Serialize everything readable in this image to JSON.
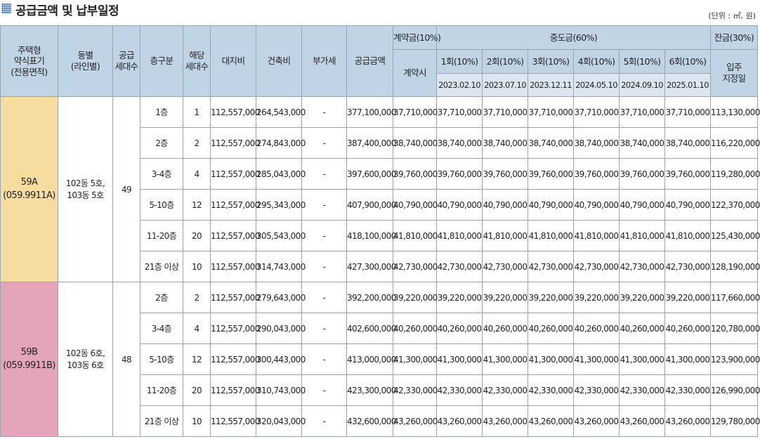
{
  "title": "공급금액 및 납부일정",
  "unit_note": "(단위 : ㎡, 원)",
  "colors": {
    "header_bg": "#c1d4e6",
    "type_59A_bg": "#f6dc9f",
    "type_59B_bg": "#e5a5b8",
    "title_icon": "#4a7fb0"
  },
  "icons": {
    "title": "grid-square-icon"
  },
  "headers": {
    "type_line1": "주택형",
    "type_line2": "약식표기",
    "type_line3": "(전용면적)",
    "building_line1": "동별",
    "building_line2": "(라인별)",
    "supply_units_line1": "공급",
    "supply_units_line2": "세대수",
    "floor": "층구분",
    "units_line1": "해당",
    "units_line2": "세대수",
    "land": "대지비",
    "construction": "건축비",
    "vat": "부가세",
    "supply_price": "공급금액",
    "deposit": "계약금(10%)",
    "deposit_sub": "계약시",
    "middle": "중도금(60%)",
    "installments": [
      {
        "label": "1회(10%)",
        "date": "2023.02.10"
      },
      {
        "label": "2회(10%)",
        "date": "2023.07.10"
      },
      {
        "label": "3회(10%)",
        "date": "2023.12.11"
      },
      {
        "label": "4회(10%)",
        "date": "2024.05.10"
      },
      {
        "label": "5회(10%)",
        "date": "2024.09.10"
      },
      {
        "label": "6회(10%)",
        "date": "2025.01.10"
      }
    ],
    "balance": "잔금(30%)",
    "balance_sub_line1": "입주",
    "balance_sub_line2": "지정일"
  },
  "groups": [
    {
      "type_line1": "59A",
      "type_line2": "(059.9911A)",
      "building_line1": "102동 5호,",
      "building_line2": "103동 5호",
      "supply_units": "49",
      "rows": [
        {
          "floor": "1층",
          "units": "1",
          "land": "112,557,000",
          "construction": "264,543,000",
          "vat": "-",
          "supply": "377,100,000",
          "deposit": "37,710,000",
          "middle": [
            "37,710,000",
            "37,710,000",
            "37,710,000",
            "37,710,000",
            "37,710,000",
            "37,710,000"
          ],
          "balance": "113,130,000"
        },
        {
          "floor": "2층",
          "units": "2",
          "land": "112,557,000",
          "construction": "274,843,000",
          "vat": "-",
          "supply": "387,400,000",
          "deposit": "38,740,000",
          "middle": [
            "38,740,000",
            "38,740,000",
            "38,740,000",
            "38,740,000",
            "38,740,000",
            "38,740,000"
          ],
          "balance": "116,220,000"
        },
        {
          "floor": "3-4층",
          "units": "4",
          "land": "112,557,000",
          "construction": "285,043,000",
          "vat": "-",
          "supply": "397,600,000",
          "deposit": "39,760,000",
          "middle": [
            "39,760,000",
            "39,760,000",
            "39,760,000",
            "39,760,000",
            "39,760,000",
            "39,760,000"
          ],
          "balance": "119,280,000"
        },
        {
          "floor": "5-10층",
          "units": "12",
          "land": "112,557,000",
          "construction": "295,343,000",
          "vat": "-",
          "supply": "407,900,000",
          "deposit": "40,790,000",
          "middle": [
            "40,790,000",
            "40,790,000",
            "40,790,000",
            "40,790,000",
            "40,790,000",
            "40,790,000"
          ],
          "balance": "122,370,000"
        },
        {
          "floor": "11-20층",
          "units": "20",
          "land": "112,557,000",
          "construction": "305,543,000",
          "vat": "-",
          "supply": "418,100,000",
          "deposit": "41,810,000",
          "middle": [
            "41,810,000",
            "41,810,000",
            "41,810,000",
            "41,810,000",
            "41,810,000",
            "41,810,000"
          ],
          "balance": "125,430,000"
        },
        {
          "floor": "21층 이상",
          "units": "10",
          "land": "112,557,000",
          "construction": "314,743,000",
          "vat": "-",
          "supply": "427,300,000",
          "deposit": "42,730,000",
          "middle": [
            "42,730,000",
            "42,730,000",
            "42,730,000",
            "42,730,000",
            "42,730,000",
            "42,730,000"
          ],
          "balance": "128,190,000"
        }
      ]
    },
    {
      "type_line1": "59B",
      "type_line2": "(059.9911B)",
      "building_line1": "102동 6호,",
      "building_line2": "103동 6호",
      "supply_units": "48",
      "rows": [
        {
          "floor": "2층",
          "units": "2",
          "land": "112,557,000",
          "construction": "279,643,000",
          "vat": "-",
          "supply": "392,200,000",
          "deposit": "39,220,000",
          "middle": [
            "39,220,000",
            "39,220,000",
            "39,220,000",
            "39,220,000",
            "39,220,000",
            "39,220,000"
          ],
          "balance": "117,660,000"
        },
        {
          "floor": "3-4층",
          "units": "4",
          "land": "112,557,000",
          "construction": "290,043,000",
          "vat": "-",
          "supply": "402,600,000",
          "deposit": "40,260,000",
          "middle": [
            "40,260,000",
            "40,260,000",
            "40,260,000",
            "40,260,000",
            "40,260,000",
            "40,260,000"
          ],
          "balance": "120,780,000"
        },
        {
          "floor": "5-10층",
          "units": "12",
          "land": "112,557,000",
          "construction": "300,443,000",
          "vat": "-",
          "supply": "413,000,000",
          "deposit": "41,300,000",
          "middle": [
            "41,300,000",
            "41,300,000",
            "41,300,000",
            "41,300,000",
            "41,300,000",
            "41,300,000"
          ],
          "balance": "123,900,000"
        },
        {
          "floor": "11-20층",
          "units": "20",
          "land": "112,557,000",
          "construction": "310,743,000",
          "vat": "-",
          "supply": "423,300,000",
          "deposit": "42,330,000",
          "middle": [
            "42,330,000",
            "42,330,000",
            "42,330,000",
            "42,330,000",
            "42,330,000",
            "42,330,000"
          ],
          "balance": "126,990,000"
        },
        {
          "floor": "21층 이상",
          "units": "10",
          "land": "112,557,000",
          "construction": "320,043,000",
          "vat": "-",
          "supply": "432,600,000",
          "deposit": "43,260,000",
          "middle": [
            "43,260,000",
            "43,260,000",
            "43,260,000",
            "43,260,000",
            "43,260,000",
            "43,260,000"
          ],
          "balance": "129,780,000"
        }
      ]
    }
  ]
}
